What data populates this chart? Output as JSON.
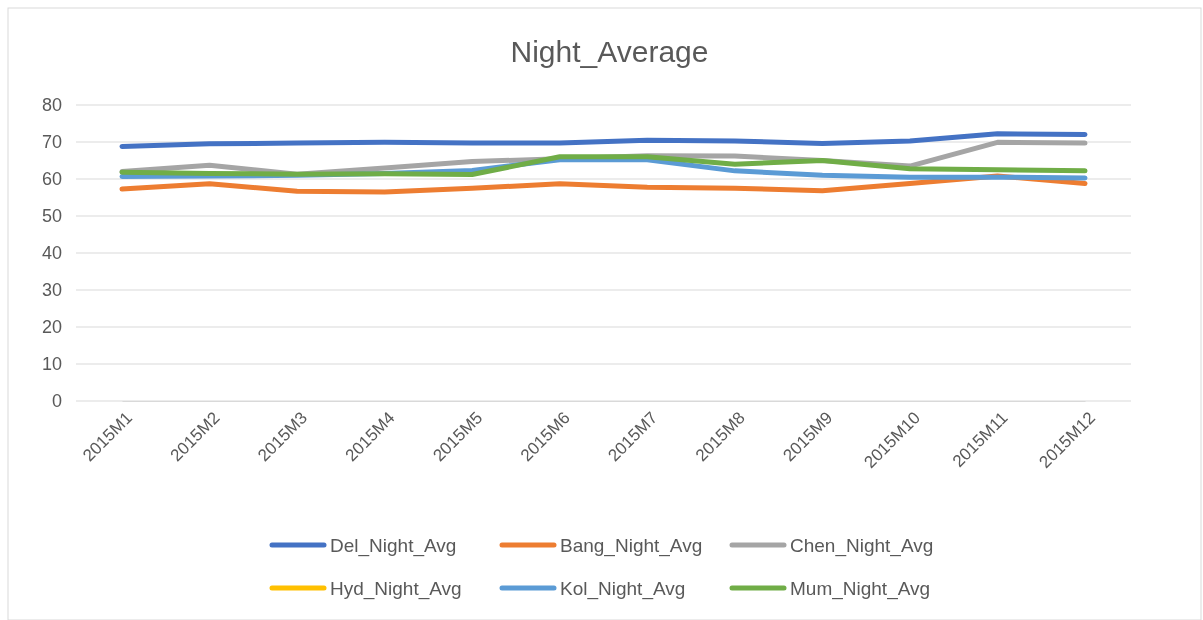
{
  "chart_data": {
    "type": "line",
    "title": "Night_Average",
    "categories": [
      "2015M1",
      "2015M2",
      "2015M3",
      "2015M4",
      "2015M5",
      "2015M6",
      "2015M7",
      "2015M8",
      "2015M9",
      "2015M10",
      "2015M11",
      "2015M12"
    ],
    "ylim": [
      0,
      80
    ],
    "yticks": [
      0,
      10,
      20,
      30,
      40,
      50,
      60,
      70,
      80
    ],
    "grid": "y",
    "legend": "bottom",
    "series": [
      {
        "name": "Del_Night_Avg",
        "color": "#4472c4",
        "values": [
          68.8,
          69.5,
          69.7,
          69.9,
          69.7,
          69.7,
          70.5,
          70.3,
          69.6,
          70.3,
          72.2,
          72.0
        ]
      },
      {
        "name": "Bang_Night_Avg",
        "color": "#ed7d31",
        "values": [
          57.3,
          58.7,
          56.7,
          56.5,
          57.5,
          58.7,
          57.8,
          57.5,
          56.8,
          58.8,
          60.8,
          58.8
        ]
      },
      {
        "name": "Chen_Night_Avg",
        "color": "#a5a5a5",
        "values": [
          62.0,
          63.7,
          61.3,
          63.0,
          64.7,
          65.5,
          66.3,
          66.2,
          65.0,
          63.5,
          69.9,
          69.7
        ]
      },
      {
        "name": "Hyd_Night_Avg",
        "color": "#ffc000",
        "values": [
          null,
          null,
          null,
          null,
          null,
          null,
          null,
          null,
          null,
          null,
          null,
          null
        ]
      },
      {
        "name": "Kol_Night_Avg",
        "color": "#5b9bd5",
        "values": [
          60.7,
          60.8,
          61.0,
          61.5,
          62.3,
          65.2,
          65.2,
          62.2,
          61.0,
          60.5,
          60.5,
          60.3
        ]
      },
      {
        "name": "Mum_Night_Avg",
        "color": "#70ad47",
        "values": [
          61.8,
          61.5,
          61.3,
          61.4,
          61.2,
          66.0,
          66.0,
          64.0,
          65.0,
          62.8,
          62.5,
          62.2
        ]
      }
    ]
  }
}
